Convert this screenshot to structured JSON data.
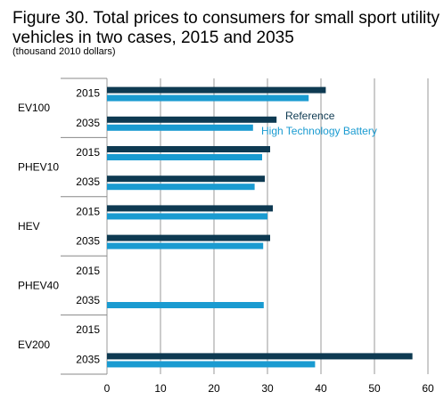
{
  "colors": {
    "reference": "#0e3a52",
    "high_tech": "#1a9bd1",
    "grid": "#999999",
    "separator": "#888888"
  },
  "chart_data": {
    "type": "bar",
    "orientation": "horizontal",
    "title_line1": "Figure 30. Total prices to consumers for small sport utility",
    "title_line2": "vehicles in two cases, 2015 and 2035",
    "subtitle": "(thousand 2010 dollars)",
    "xlim": [
      0,
      60
    ],
    "x_ticks": [
      "0",
      "10",
      "20",
      "30",
      "40",
      "50",
      "60"
    ],
    "grid": true,
    "legend_position": "inside-upper-right",
    "series": [
      {
        "name": "Reference",
        "color": "#0e3a52"
      },
      {
        "name": "High Technology Battery",
        "color": "#1a9bd1"
      }
    ],
    "groups": [
      {
        "label": "EV100",
        "rows": [
          {
            "year": "2015",
            "values": [
              40.9,
              37.7
            ]
          },
          {
            "year": "2035",
            "values": [
              31.7,
              27.3
            ]
          }
        ]
      },
      {
        "label": "PHEV10",
        "rows": [
          {
            "year": "2015",
            "values": [
              30.5,
              29.0
            ]
          },
          {
            "year": "2035",
            "values": [
              29.5,
              27.6
            ]
          }
        ]
      },
      {
        "label": "HEV",
        "rows": [
          {
            "year": "2015",
            "values": [
              31.0,
              30.0
            ]
          },
          {
            "year": "2035",
            "values": [
              30.5,
              29.2
            ]
          }
        ]
      },
      {
        "label": "PHEV40",
        "rows": [
          {
            "year": "2015",
            "values": [
              null,
              null
            ]
          },
          {
            "year": "2035",
            "values": [
              null,
              29.3
            ]
          }
        ]
      },
      {
        "label": "EV200",
        "rows": [
          {
            "year": "2015",
            "values": [
              null,
              null
            ]
          },
          {
            "year": "2035",
            "values": [
              57.1,
              38.9
            ]
          }
        ]
      }
    ]
  }
}
